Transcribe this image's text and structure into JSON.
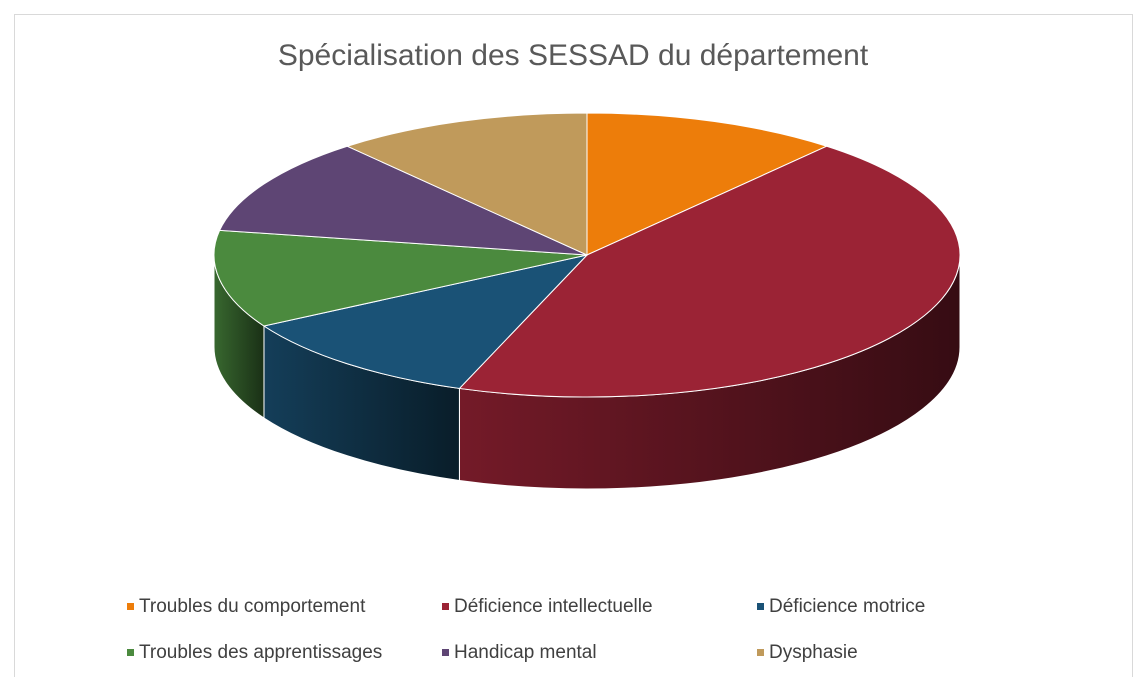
{
  "chart_data": {
    "type": "pie",
    "title": "Spécialisation des SESSAD du département",
    "categories": [
      "Troubles du comportement",
      "Déficience intellectuelle",
      "Déficience motrice",
      "Troubles des apprentissages",
      "Handicap mental",
      "Dysphasie"
    ],
    "values": [
      1,
      4,
      1,
      1,
      1,
      1
    ],
    "colors": [
      "#ed7d0a",
      "#9b2335",
      "#1a5276",
      "#4b8a3e",
      "#5e4574",
      "#c09a5b"
    ],
    "legend": "bottom"
  }
}
